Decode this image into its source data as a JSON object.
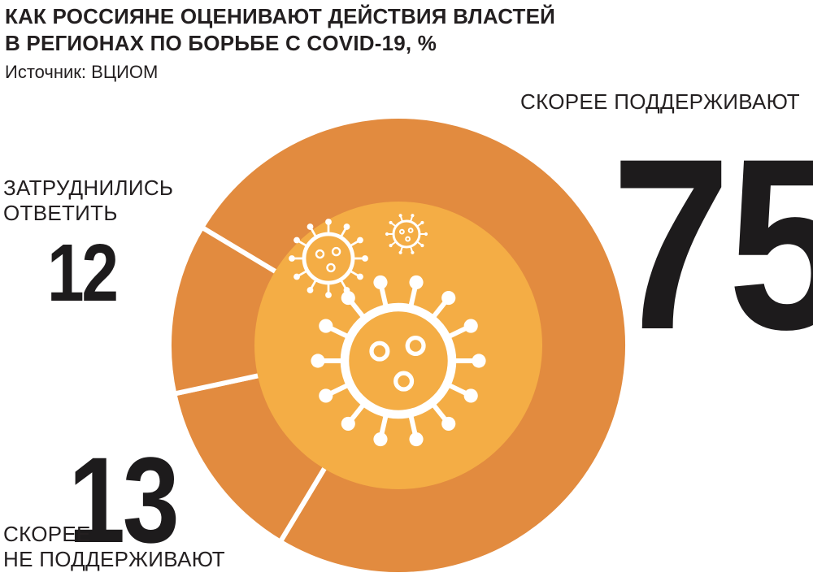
{
  "title": {
    "line1": "КАК РОССИЯНЕ ОЦЕНИВАЮТ ДЕЙСТВИЯ ВЛАСТЕЙ",
    "line2": "В РЕГИОНАХ ПО БОРЬБЕ С COVID-19, %"
  },
  "source": "Источник: ВЦИОМ",
  "colors": {
    "ring": "#e28b3f",
    "center": "#f4ad45",
    "icon": "#ffffff",
    "text": "#231f20"
  },
  "center_icon": "virus-icon",
  "chart_data": {
    "type": "pie",
    "title": "КАК РОССИЯНЕ ОЦЕНИВАЮТ ДЕЙСТВИЯ ВЛАСТЕЙ В РЕГИОНАХ ПО БОРЬБЕ С COVID-19, %",
    "unit": "%",
    "slices": [
      {
        "label_lines": [
          "СКОРЕЕ ПОДДЕРЖИВАЮТ"
        ],
        "value": 75,
        "value_label": "75"
      },
      {
        "label_lines": [
          "СКОРЕЕ",
          "НЕ ПОДДЕРЖИВАЮТ"
        ],
        "value": 13,
        "value_label": "13"
      },
      {
        "label_lines": [
          "ЗАТРУДНИЛИСЬ",
          "ОТВЕТИТЬ"
        ],
        "value": 12,
        "value_label": "12"
      }
    ]
  }
}
